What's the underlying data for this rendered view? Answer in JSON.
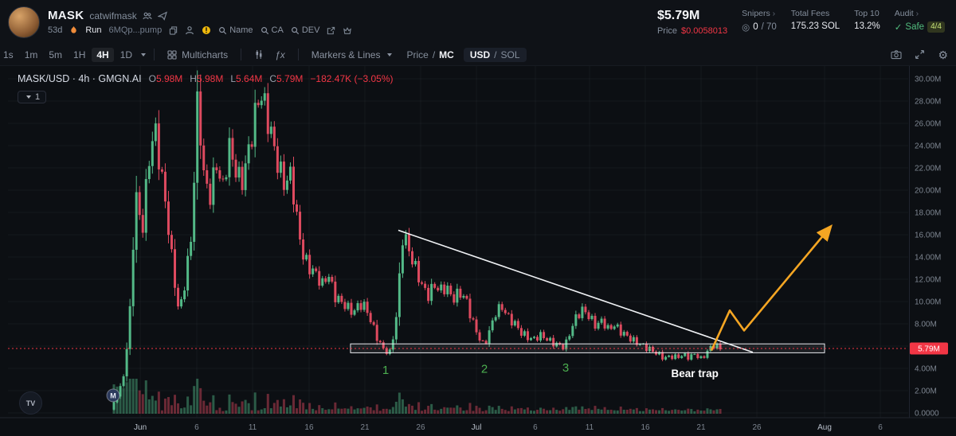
{
  "colors": {
    "up": "#53b987",
    "down": "#de4a5f",
    "accent_red": "#f23645",
    "green": "#4caf50",
    "orange": "#f5a623",
    "axis_text": "#7d8590",
    "grid": "rgba(140,150,165,0.07)",
    "axis_line": "#1f242e"
  },
  "header": {
    "token": {
      "symbol": "MASK",
      "name": "catwifmask",
      "age": "53d",
      "run": "Run",
      "address": "6MQp...pump"
    },
    "actions": {
      "name": "Name",
      "ca": "CA",
      "dev": "DEV"
    },
    "stats": {
      "market_cap": "$5.79M",
      "price_label": "Price",
      "price_value": "$0.0058013",
      "snipers_label": "Snipers",
      "snipers_arrow": "›",
      "snipers_icon": "◎",
      "snipers_value": "0",
      "snipers_total": "/ 70",
      "fees_label": "Total Fees",
      "fees_value": "175.23 SOL",
      "top10_label": "Top 10",
      "top10_value": "13.2%",
      "audit_label": "Audit",
      "audit_arrow": "›",
      "audit_check": "✓",
      "audit_safe": "Safe",
      "audit_score": "4/4"
    }
  },
  "toolbar": {
    "timeframes": [
      "1s",
      "1m",
      "5m",
      "1H",
      "4H",
      "1D"
    ],
    "active": "4H",
    "multicharts": "Multicharts",
    "fx": "ƒx",
    "markers": "Markers & Lines",
    "price": "Price",
    "mc": "MC",
    "usd": "USD",
    "sol": "SOL"
  },
  "legend": {
    "title": "MASK/USD · 4h · GMGN.AI",
    "o_k": "O",
    "o_v": "5.98M",
    "h_k": "H",
    "h_v": "5.98M",
    "l_k": "L",
    "l_v": "5.64M",
    "c_k": "C",
    "c_v": "5.79M",
    "change": "−182.47K (−3.05%)",
    "collapse": "1",
    "tv": "TV"
  },
  "chart_data": {
    "type": "candlestick",
    "symbol": "MASK/USD",
    "interval": "4h",
    "source": "GMGN.AI",
    "unit": "M USD market cap",
    "y_axis": {
      "min": 0,
      "max": 30,
      "ticks": [
        {
          "p": 30,
          "label": "30.00M"
        },
        {
          "p": 28,
          "label": "28.00M"
        },
        {
          "p": 26,
          "label": "26.00M"
        },
        {
          "p": 24,
          "label": "24.00M"
        },
        {
          "p": 22,
          "label": "22.00M"
        },
        {
          "p": 20,
          "label": "20.00M"
        },
        {
          "p": 18,
          "label": "18.00M"
        },
        {
          "p": 16,
          "label": "16.00M"
        },
        {
          "p": 14,
          "label": "14.00M"
        },
        {
          "p": 12,
          "label": "12.00M"
        },
        {
          "p": 10,
          "label": "10.00M"
        },
        {
          "p": 8,
          "label": "8.00M"
        },
        {
          "p": 6,
          "label": "6.00M"
        },
        {
          "p": 4,
          "label": "4.00M"
        },
        {
          "p": 2,
          "label": "2.00M"
        },
        {
          "p": 0,
          "label": "0.0000"
        }
      ]
    },
    "x_axis": {
      "ticks": [
        {
          "t": 0.147,
          "label": "Jun",
          "major": true
        },
        {
          "t": 0.2097,
          "label": "6"
        },
        {
          "t": 0.2717,
          "label": "11"
        },
        {
          "t": 0.3345,
          "label": "16"
        },
        {
          "t": 0.3965,
          "label": "21"
        },
        {
          "t": 0.4584,
          "label": "26"
        },
        {
          "t": 0.5204,
          "label": "Jul",
          "major": true
        },
        {
          "t": 0.5858,
          "label": "6"
        },
        {
          "t": 0.646,
          "label": "11"
        },
        {
          "t": 0.708,
          "label": "16"
        },
        {
          "t": 0.7699,
          "label": "21"
        },
        {
          "t": 0.8319,
          "label": "26"
        },
        {
          "t": 0.9071,
          "label": "Aug",
          "major": true
        },
        {
          "t": 0.969,
          "label": "6"
        }
      ]
    },
    "series": {
      "t_start": 0.1177,
      "t_end": 0.7912,
      "prices": [
        0.3,
        1.5,
        3.0,
        8,
        20,
        16,
        22,
        25.8,
        22,
        18,
        13,
        8.8,
        12,
        16,
        28.5,
        21,
        19.5,
        22.5,
        20,
        24,
        22,
        20.5,
        23,
        26,
        29.0,
        27,
        24.5,
        22,
        20.5,
        21.5,
        17,
        14,
        13,
        12.5,
        11.5,
        12.5,
        10.5,
        10,
        9.5,
        9,
        9.8,
        9.5,
        8,
        6.5,
        5.6,
        5.4,
        9,
        16.3,
        14.5,
        13,
        11.5,
        10.5,
        11.5,
        11,
        11.3,
        10.2,
        10.8,
        10.4,
        8.5,
        7,
        6.0,
        7.5,
        9.2,
        9.5,
        8.5,
        8,
        7.2,
        6.8,
        6.6,
        7.0,
        6.7,
        6.3,
        6.1,
        5.9,
        7.5,
        8.8,
        9.3,
        8.6,
        7.8,
        8.3,
        7.5,
        7.9,
        7.3,
        6.9,
        6.5,
        6.2,
        5.9,
        5.6,
        5.3,
        4.9,
        5.1,
        5.0,
        5.2,
        5.0,
        5.3,
        4.8,
        5.6,
        6.1,
        5.79
      ]
    },
    "current_price": {
      "value": 5.79,
      "label": "5.79M"
    },
    "annotations": {
      "trendline": {
        "x1": 0.4336,
        "p1": 16.4,
        "x2": 0.8274,
        "p2": 5.45
      },
      "support_box": {
        "x1": 0.3805,
        "x2": 0.9071,
        "p_top": 6.2,
        "p_bottom": 5.4
      },
      "arrow": {
        "points": [
          [
            0.7814,
            5.6
          ],
          [
            0.8018,
            9.2
          ],
          [
            0.8177,
            7.4
          ],
          [
            0.9115,
            16.5
          ]
        ]
      },
      "touches": [
        {
          "label": "1",
          "t": 0.4195,
          "p": 3.5
        },
        {
          "label": "2",
          "t": 0.5292,
          "p": 3.6
        },
        {
          "label": "3",
          "t": 0.6195,
          "p": 3.7
        }
      ],
      "bear_trap": {
        "label": "Bear trap",
        "t": 0.763,
        "p": 3.2
      }
    },
    "migration_marker": {
      "label": "M",
      "t": 0.1168
    }
  }
}
